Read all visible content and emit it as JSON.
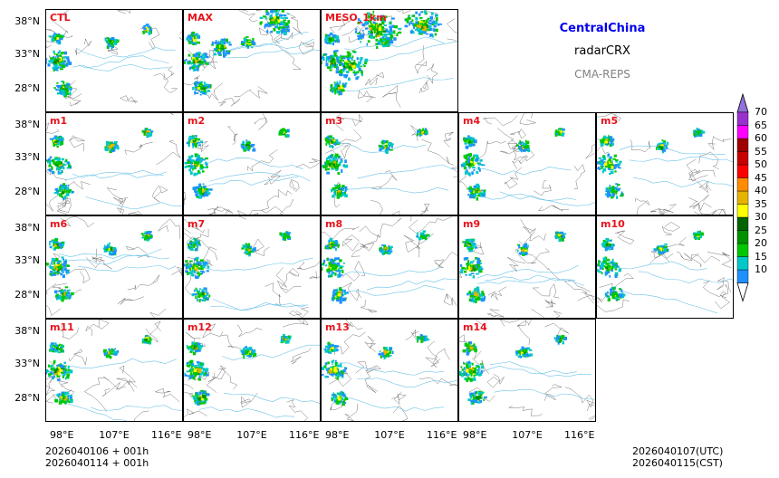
{
  "header": {
    "region": "CentralChina",
    "variable": "radarCRX",
    "model": "CMA-REPS"
  },
  "panels": [
    {
      "label": "CTL",
      "row": 0,
      "col": 0
    },
    {
      "label": "MAX",
      "row": 0,
      "col": 1
    },
    {
      "label": "MESO_1km",
      "row": 0,
      "col": 2
    },
    {
      "label": "m1",
      "row": 1,
      "col": 0
    },
    {
      "label": "m2",
      "row": 1,
      "col": 1
    },
    {
      "label": "m3",
      "row": 1,
      "col": 2
    },
    {
      "label": "m4",
      "row": 1,
      "col": 3
    },
    {
      "label": "m5",
      "row": 1,
      "col": 4
    },
    {
      "label": "m6",
      "row": 2,
      "col": 0
    },
    {
      "label": "m7",
      "row": 2,
      "col": 1
    },
    {
      "label": "m8",
      "row": 2,
      "col": 2
    },
    {
      "label": "m9",
      "row": 2,
      "col": 3
    },
    {
      "label": "m10",
      "row": 2,
      "col": 4
    },
    {
      "label": "m11",
      "row": 3,
      "col": 0
    },
    {
      "label": "m12",
      "row": 3,
      "col": 1
    },
    {
      "label": "m13",
      "row": 3,
      "col": 2
    },
    {
      "label": "m14",
      "row": 3,
      "col": 3
    }
  ],
  "axes": {
    "lat_ticks": [
      "38°N",
      "33°N",
      "28°N"
    ],
    "lon_ticks": [
      "98°E",
      "107°E",
      "116°E"
    ]
  },
  "colorbar": {
    "levels": [
      "70",
      "65",
      "60",
      "55",
      "50",
      "45",
      "40",
      "35",
      "30",
      "25",
      "20",
      "15",
      "10"
    ],
    "colors_bottom_to_top": [
      "#1e90ff",
      "#00c8c8",
      "#00c800",
      "#009000",
      "#006400",
      "#ffff00",
      "#e6b400",
      "#ff8c00",
      "#ff0000",
      "#c80000",
      "#a00000",
      "#ff00ff",
      "#9932cc",
      "#9370db"
    ]
  },
  "footer": {
    "init_time": "2026040106  +  001h",
    "init_time_cst": "2026040114  +  001h",
    "valid_utc": "2026040107(UTC)",
    "valid_cst": "2026040115(CST)"
  }
}
